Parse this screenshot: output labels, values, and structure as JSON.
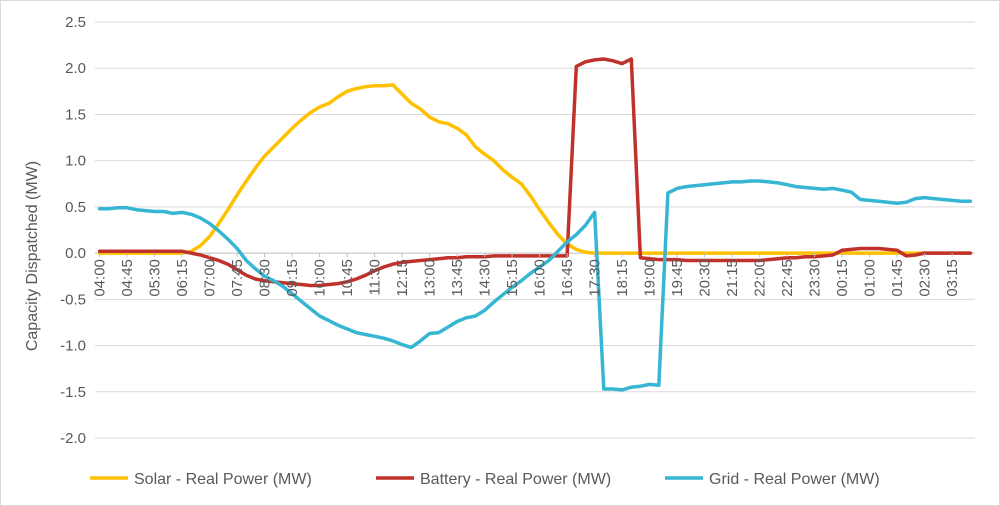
{
  "chart_data": {
    "type": "line",
    "title": "",
    "xlabel": "",
    "ylabel": "Capacity Dispatched (MW)",
    "ylim": [
      -2.0,
      2.5
    ],
    "yticks": [
      "2.5",
      "2.0",
      "1.5",
      "1.0",
      "0.5",
      "0.0",
      "-0.5",
      "-1.0",
      "-1.5",
      "-2.0"
    ],
    "ytick_values": [
      2.5,
      2.0,
      1.5,
      1.0,
      0.5,
      0.0,
      -0.5,
      -1.0,
      -1.5,
      -2.0
    ],
    "grid": "horizontal",
    "legend_position": "bottom",
    "x_tick_labels": [
      "04:00",
      "04:45",
      "05:30",
      "06:15",
      "07:00",
      "07:45",
      "08:30",
      "09:15",
      "10:00",
      "10:45",
      "11:30",
      "12:15",
      "13:00",
      "13:45",
      "14:30",
      "15:15",
      "16:00",
      "16:45",
      "17:30",
      "18:15",
      "19:00",
      "19:45",
      "20:30",
      "21:15",
      "22:00",
      "22:45",
      "23:30",
      "00:15",
      "01:00",
      "01:45",
      "02:30",
      "03:15"
    ],
    "x": [
      "04:00",
      "04:15",
      "04:30",
      "04:45",
      "05:00",
      "05:15",
      "05:30",
      "05:45",
      "06:00",
      "06:15",
      "06:30",
      "06:45",
      "07:00",
      "07:15",
      "07:30",
      "07:45",
      "08:00",
      "08:15",
      "08:30",
      "08:45",
      "09:00",
      "09:15",
      "09:30",
      "09:45",
      "10:00",
      "10:15",
      "10:30",
      "10:45",
      "11:00",
      "11:15",
      "11:30",
      "11:45",
      "12:00",
      "12:15",
      "12:30",
      "12:45",
      "13:00",
      "13:15",
      "13:30",
      "13:45",
      "14:00",
      "14:15",
      "14:30",
      "14:45",
      "15:00",
      "15:15",
      "15:30",
      "15:45",
      "16:00",
      "16:15",
      "16:30",
      "16:45",
      "17:00",
      "17:15",
      "17:30",
      "17:45",
      "18:00",
      "18:15",
      "18:30",
      "18:45",
      "19:00",
      "19:15",
      "19:30",
      "19:45",
      "20:00",
      "20:15",
      "20:30",
      "20:45",
      "21:00",
      "21:15",
      "21:30",
      "21:45",
      "22:00",
      "22:15",
      "22:30",
      "22:45",
      "23:00",
      "23:15",
      "23:30",
      "23:45",
      "00:00",
      "00:15",
      "00:30",
      "00:45",
      "01:00",
      "01:15",
      "01:30",
      "01:45",
      "02:00",
      "02:15",
      "02:30",
      "02:45",
      "03:00",
      "03:15",
      "03:30",
      "03:45"
    ],
    "series": [
      {
        "name": "Solar - Real Power (MW)",
        "color": "#ffc000",
        "values": [
          0,
          0,
          0,
          0,
          0,
          0,
          0,
          0,
          0,
          0,
          0.02,
          0.08,
          0.18,
          0.32,
          0.47,
          0.63,
          0.78,
          0.92,
          1.05,
          1.15,
          1.25,
          1.35,
          1.44,
          1.52,
          1.58,
          1.62,
          1.69,
          1.75,
          1.78,
          1.8,
          1.81,
          1.81,
          1.82,
          1.72,
          1.62,
          1.56,
          1.47,
          1.42,
          1.4,
          1.35,
          1.28,
          1.15,
          1.07,
          1.0,
          0.9,
          0.82,
          0.75,
          0.62,
          0.47,
          0.33,
          0.2,
          0.1,
          0.04,
          0.01,
          0,
          0,
          0,
          0,
          0,
          0,
          0,
          0,
          0,
          0,
          0,
          0,
          0,
          0,
          0,
          0,
          0,
          0,
          0,
          0,
          0,
          0,
          0,
          0,
          0,
          0,
          0,
          0,
          0,
          0,
          0,
          0,
          0,
          0,
          0,
          0,
          0,
          0,
          0,
          0,
          0,
          0
        ]
      },
      {
        "name": "Battery - Real Power (MW)",
        "color": "#c0312c",
        "values": [
          0.02,
          0.02,
          0.02,
          0.02,
          0.02,
          0.02,
          0.02,
          0.02,
          0.02,
          0.02,
          0,
          -0.02,
          -0.05,
          -0.08,
          -0.12,
          -0.18,
          -0.24,
          -0.28,
          -0.3,
          -0.31,
          -0.32,
          -0.33,
          -0.34,
          -0.35,
          -0.35,
          -0.34,
          -0.33,
          -0.31,
          -0.28,
          -0.24,
          -0.19,
          -0.15,
          -0.12,
          -0.1,
          -0.09,
          -0.08,
          -0.07,
          -0.06,
          -0.05,
          -0.05,
          -0.04,
          -0.04,
          -0.04,
          -0.03,
          -0.03,
          -0.03,
          -0.03,
          -0.03,
          -0.03,
          -0.03,
          -0.03,
          -0.03,
          2.02,
          2.07,
          2.09,
          2.1,
          2.08,
          2.05,
          2.1,
          -0.05,
          -0.06,
          -0.07,
          -0.07,
          -0.07,
          -0.08,
          -0.08,
          -0.08,
          -0.08,
          -0.08,
          -0.08,
          -0.08,
          -0.08,
          -0.08,
          -0.07,
          -0.06,
          -0.05,
          -0.05,
          -0.04,
          -0.04,
          -0.03,
          -0.02,
          0.03,
          0.04,
          0.05,
          0.05,
          0.05,
          0.04,
          0.03,
          -0.03,
          -0.02,
          0,
          0,
          0,
          0,
          0,
          0
        ]
      },
      {
        "name": "Grid - Real Power (MW)",
        "color": "#36b6d3",
        "values": [
          0.48,
          0.48,
          0.49,
          0.49,
          0.47,
          0.46,
          0.45,
          0.45,
          0.43,
          0.44,
          0.42,
          0.38,
          0.32,
          0.24,
          0.15,
          0.05,
          -0.08,
          -0.17,
          -0.25,
          -0.3,
          -0.36,
          -0.44,
          -0.52,
          -0.6,
          -0.68,
          -0.73,
          -0.78,
          -0.82,
          -0.86,
          -0.88,
          -0.9,
          -0.92,
          -0.95,
          -0.99,
          -1.02,
          -0.95,
          -0.87,
          -0.86,
          -0.8,
          -0.74,
          -0.7,
          -0.68,
          -0.62,
          -0.53,
          -0.45,
          -0.37,
          -0.3,
          -0.22,
          -0.15,
          -0.08,
          0.02,
          0.12,
          0.2,
          0.3,
          0.44,
          -1.47,
          -1.47,
          -1.48,
          -1.45,
          -1.44,
          -1.42,
          -1.43,
          0.65,
          0.7,
          0.72,
          0.73,
          0.74,
          0.75,
          0.76,
          0.77,
          0.77,
          0.78,
          0.78,
          0.77,
          0.76,
          0.74,
          0.72,
          0.71,
          0.7,
          0.69,
          0.7,
          0.68,
          0.66,
          0.58,
          0.57,
          0.56,
          0.55,
          0.54,
          0.55,
          0.59,
          0.6,
          0.59,
          0.58,
          0.57,
          0.56,
          0.56
        ]
      }
    ]
  }
}
